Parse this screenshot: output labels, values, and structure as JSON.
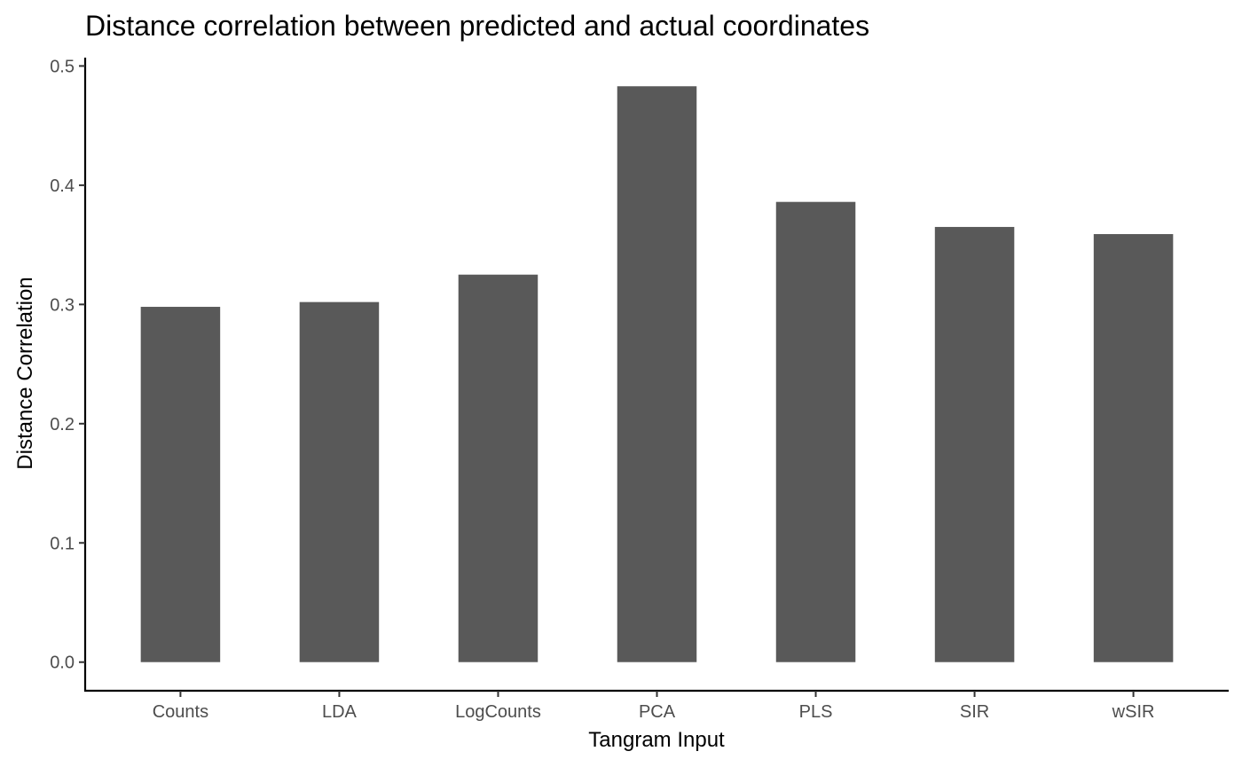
{
  "chart_data": {
    "type": "bar",
    "title": "Distance correlation between predicted and actual coordinates",
    "xlabel": "Tangram Input",
    "ylabel": "Distance Correlation",
    "categories": [
      "Counts",
      "LDA",
      "LogCounts",
      "PCA",
      "PLS",
      "SIR",
      "wSIR"
    ],
    "values": [
      0.298,
      0.302,
      0.325,
      0.483,
      0.386,
      0.365,
      0.359
    ],
    "ylim": [
      -0.024,
      0.507
    ],
    "yticks": [
      "0.0",
      "0.1",
      "0.2",
      "0.3",
      "0.4",
      "0.5"
    ],
    "ytick_values": [
      0,
      0.1,
      0.2,
      0.3,
      0.4,
      0.5
    ],
    "grid": false,
    "legend": "none",
    "bar_color": "#595959"
  }
}
